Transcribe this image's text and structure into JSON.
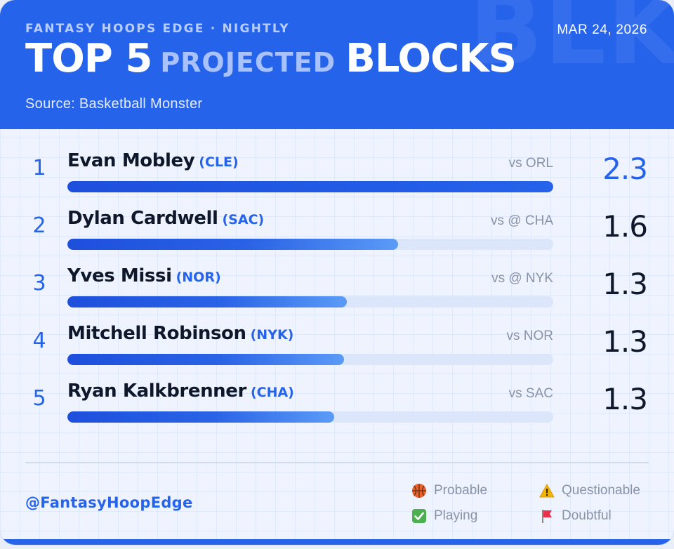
{
  "header": {
    "kicker": "FANTASY HOOPS EDGE · NIGHTLY",
    "date": "MAR 24, 2026",
    "title_part1": "TOP 5",
    "title_part2": "PROJECTED",
    "title_part3": "BLOCKS",
    "source": "Source: Basketball Monster",
    "watermark": "BLK"
  },
  "chart_data": {
    "type": "bar",
    "orientation": "horizontal",
    "metric": "Projected blocks",
    "xlim": [
      0,
      2.3
    ],
    "players": [
      {
        "rank": "1",
        "name": "Evan Mobley",
        "team": "(CLE)",
        "opponent": "vs ORL",
        "value": 2.3,
        "value_label": "2.3"
      },
      {
        "rank": "2",
        "name": "Dylan Cardwell",
        "team": "(SAC)",
        "opponent": "vs @ CHA",
        "value": 1.6,
        "value_label": "1.6"
      },
      {
        "rank": "3",
        "name": "Yves Missi",
        "team": "(NOR)",
        "opponent": "vs @ NYK",
        "value": 1.3,
        "value_label": "1.3"
      },
      {
        "rank": "4",
        "name": "Mitchell Robinson",
        "team": "(NYK)",
        "opponent": "vs NOR",
        "value": 1.3,
        "value_label": "1.3"
      },
      {
        "rank": "5",
        "name": "Ryan Kalkbrenner",
        "team": "(CHA)",
        "opponent": "vs SAC",
        "value": 1.3,
        "value_label": "1.3"
      }
    ],
    "bar_fill_fractions": [
      1.0,
      0.68,
      0.575,
      0.569,
      0.549
    ]
  },
  "footer": {
    "handle": "@FantasyHoopEdge",
    "legend": [
      {
        "label": "Probable",
        "icon": "basketball-icon"
      },
      {
        "label": "Questionable",
        "icon": "warning-icon"
      },
      {
        "label": "Playing",
        "icon": "check-icon"
      },
      {
        "label": "Doubtful",
        "icon": "flag-icon"
      }
    ]
  },
  "colors": {
    "accent": "#2563eb",
    "text_dark": "#0f172a",
    "muted": "#8a93a6",
    "track": "#dbe6fb"
  }
}
